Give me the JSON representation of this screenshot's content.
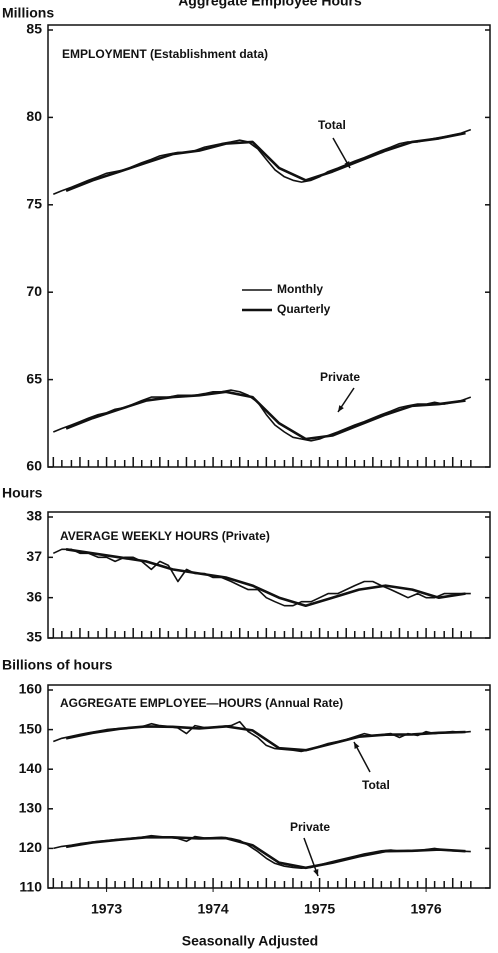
{
  "title": "Aggregate Employee Hours",
  "footer": "Seasonally Adjusted",
  "chart_data": [
    {
      "type": "line",
      "y_label": "Millions",
      "annotations": [
        "EMPLOYMENT (Establishment data)",
        "Total",
        "Private"
      ],
      "xlim": [
        1972.95,
        1977.1
      ],
      "ylim": [
        60,
        85
      ],
      "yticks": [
        60,
        65,
        70,
        75,
        80,
        85
      ],
      "x": [
        1973,
        1973.08,
        1973.17,
        1973.25,
        1973.33,
        1973.42,
        1973.5,
        1973.58,
        1973.67,
        1973.75,
        1973.83,
        1973.92,
        1974,
        1974.08,
        1974.17,
        1974.25,
        1974.33,
        1974.42,
        1974.5,
        1974.58,
        1974.67,
        1974.75,
        1974.83,
        1974.92,
        1975,
        1975.08,
        1975.17,
        1975.25,
        1975.33,
        1975.42,
        1975.5,
        1975.58,
        1975.67,
        1975.75,
        1975.83,
        1975.92,
        1976,
        1976.08,
        1976.17,
        1976.25,
        1976.33,
        1976.42,
        1976.5,
        1976.58,
        1976.67,
        1976.75,
        1976.83,
        1976.92
      ],
      "series": [
        {
          "name": "Monthly",
          "color": "#111111",
          "values": [
            75.6,
            75.8,
            76.0,
            76.2,
            76.4,
            76.6,
            76.8,
            76.9,
            77.0,
            77.2,
            77.4,
            77.6,
            77.8,
            77.9,
            78.0,
            78.0,
            78.1,
            78.3,
            78.4,
            78.5,
            78.6,
            78.7,
            78.6,
            78.2,
            77.6,
            77.0,
            76.6,
            76.4,
            76.3,
            76.4,
            76.6,
            76.9,
            77.1,
            77.3,
            77.5,
            77.7,
            77.9,
            78.1,
            78.3,
            78.5,
            78.6,
            78.6,
            78.7,
            78.8,
            78.9,
            79.0,
            79.1,
            79.3
          ]
        },
        {
          "name": "Quarterly",
          "color": "#111111",
          "x": [
            1973.12,
            1973.37,
            1973.62,
            1973.87,
            1974.12,
            1974.37,
            1974.62,
            1974.87,
            1975.12,
            1975.37,
            1975.62,
            1975.87,
            1976.12,
            1976.37,
            1976.62,
            1976.87
          ],
          "values": [
            75.8,
            76.4,
            76.9,
            77.4,
            77.9,
            78.1,
            78.5,
            78.6,
            77.1,
            76.4,
            76.9,
            77.5,
            78.1,
            78.6,
            78.8,
            79.1
          ]
        },
        {
          "color": "#111111",
          "values": [
            62.0,
            62.2,
            62.4,
            62.6,
            62.8,
            63.0,
            63.1,
            63.3,
            63.4,
            63.6,
            63.8,
            64.0,
            64.0,
            64.0,
            64.1,
            64.1,
            64.1,
            64.2,
            64.3,
            64.3,
            64.4,
            64.3,
            64.1,
            63.7,
            63.0,
            62.4,
            62.0,
            61.7,
            61.6,
            61.5,
            61.6,
            61.8,
            62.0,
            62.2,
            62.4,
            62.6,
            62.8,
            63.0,
            63.2,
            63.4,
            63.5,
            63.6,
            63.6,
            63.7,
            63.6,
            63.7,
            63.8,
            64.0
          ]
        },
        {
          "color": "#111111",
          "x": [
            1973.12,
            1973.37,
            1973.62,
            1973.87,
            1974.12,
            1974.37,
            1974.62,
            1974.87,
            1975.12,
            1975.37,
            1975.62,
            1975.87,
            1976.12,
            1976.37,
            1976.62,
            1976.87
          ],
          "values": [
            62.2,
            62.8,
            63.3,
            63.8,
            64.0,
            64.1,
            64.3,
            64.0,
            62.5,
            61.6,
            61.8,
            62.4,
            63.0,
            63.5,
            63.6,
            63.8
          ]
        }
      ]
    },
    {
      "type": "line",
      "y_label": "Hours",
      "annotations": [
        "AVERAGE WEEKLY HOURS (Private)"
      ],
      "xlim": [
        1972.95,
        1977.1
      ],
      "ylim": [
        35,
        38
      ],
      "yticks": [
        35,
        36,
        37,
        38
      ],
      "x": [
        1973,
        1973.08,
        1973.17,
        1973.25,
        1973.33,
        1973.42,
        1973.5,
        1973.58,
        1973.67,
        1973.75,
        1973.83,
        1973.92,
        1974,
        1974.08,
        1974.17,
        1974.25,
        1974.33,
        1974.42,
        1974.5,
        1974.58,
        1974.67,
        1974.75,
        1974.83,
        1974.92,
        1975,
        1975.08,
        1975.17,
        1975.25,
        1975.33,
        1975.42,
        1975.5,
        1975.58,
        1975.67,
        1975.75,
        1975.83,
        1975.92,
        1976,
        1976.08,
        1976.17,
        1976.25,
        1976.33,
        1976.42,
        1976.5,
        1976.58,
        1976.67,
        1976.75,
        1976.83,
        1976.92
      ],
      "series": [
        {
          "color": "#111111",
          "values": [
            37.1,
            37.2,
            37.2,
            37.1,
            37.1,
            37.0,
            37.0,
            36.9,
            37.0,
            37.0,
            36.9,
            36.7,
            36.9,
            36.8,
            36.4,
            36.7,
            36.6,
            36.6,
            36.5,
            36.5,
            36.4,
            36.3,
            36.2,
            36.2,
            36.0,
            35.9,
            35.8,
            35.8,
            35.9,
            35.9,
            36.0,
            36.1,
            36.1,
            36.2,
            36.3,
            36.4,
            36.4,
            36.3,
            36.2,
            36.1,
            36.0,
            36.1,
            36.0,
            36.0,
            36.1,
            36.1,
            36.1,
            36.1
          ]
        },
        {
          "color": "#111111",
          "x": [
            1973.12,
            1973.37,
            1973.62,
            1973.87,
            1974.12,
            1974.37,
            1974.62,
            1974.87,
            1975.12,
            1975.37,
            1975.62,
            1975.87,
            1976.12,
            1976.37,
            1976.62,
            1976.87
          ],
          "values": [
            37.2,
            37.1,
            37.0,
            36.9,
            36.7,
            36.6,
            36.5,
            36.3,
            36.0,
            35.8,
            36.0,
            36.2,
            36.3,
            36.2,
            36.0,
            36.1
          ]
        }
      ]
    },
    {
      "type": "line",
      "y_label": "Billions of hours",
      "annotations": [
        "AGGREGATE EMPLOYEE—HOURS (Annual Rate)",
        "Total",
        "Private"
      ],
      "xlim": [
        1972.95,
        1977.1
      ],
      "ylim": [
        110,
        160
      ],
      "yticks": [
        110,
        120,
        130,
        140,
        150,
        160
      ],
      "xticks": [
        {
          "value": 1973.5,
          "label": "1973"
        },
        {
          "value": 1974.5,
          "label": "1974"
        },
        {
          "value": 1975.5,
          "label": "1975"
        },
        {
          "value": 1976.5,
          "label": "1976"
        }
      ],
      "x": [
        1973,
        1973.08,
        1973.17,
        1973.25,
        1973.33,
        1973.42,
        1973.5,
        1973.58,
        1973.67,
        1973.75,
        1973.83,
        1973.92,
        1974,
        1974.08,
        1974.17,
        1974.25,
        1974.33,
        1974.42,
        1974.5,
        1974.58,
        1974.67,
        1974.75,
        1974.83,
        1974.92,
        1975,
        1975.08,
        1975.17,
        1975.25,
        1975.33,
        1975.42,
        1975.5,
        1975.58,
        1975.67,
        1975.75,
        1975.83,
        1975.92,
        1976,
        1976.08,
        1976.17,
        1976.25,
        1976.33,
        1976.42,
        1976.5,
        1976.58,
        1976.67,
        1976.75,
        1976.83,
        1976.92
      ],
      "series": [
        {
          "color": "#111111",
          "values": [
            147,
            147.8,
            148.3,
            148.8,
            149.2,
            149.6,
            150.0,
            150.2,
            150.3,
            150.5,
            150.7,
            151.5,
            151.0,
            150.8,
            150.4,
            149.0,
            151.0,
            150.5,
            150.6,
            150.8,
            151.0,
            152.0,
            149.5,
            148.0,
            146.0,
            145.2,
            145.0,
            144.8,
            144.5,
            145.0,
            145.8,
            146.5,
            147.0,
            147.5,
            148.2,
            149.0,
            148.5,
            148.7,
            149.0,
            148.0,
            149.0,
            148.5,
            149.5,
            149.0,
            149.3,
            149.5,
            149.3,
            149.5
          ]
        },
        {
          "color": "#111111",
          "x": [
            1973.12,
            1973.37,
            1973.62,
            1973.87,
            1974.12,
            1974.37,
            1974.62,
            1974.87,
            1975.12,
            1975.37,
            1975.62,
            1975.87,
            1976.12,
            1976.37,
            1976.62,
            1976.87
          ],
          "values": [
            147.8,
            149.2,
            150.2,
            150.8,
            150.7,
            150.3,
            150.8,
            149.8,
            145.3,
            144.8,
            146.5,
            148.2,
            148.7,
            148.8,
            149.2,
            149.4
          ]
        },
        {
          "color": "#111111",
          "values": [
            120.0,
            120.5,
            120.8,
            121.2,
            121.5,
            121.8,
            122.0,
            122.2,
            122.4,
            122.6,
            122.8,
            123.2,
            123.0,
            122.8,
            122.5,
            121.8,
            123.0,
            122.6,
            122.7,
            122.8,
            122.5,
            122.0,
            120.8,
            119.2,
            117.5,
            116.2,
            115.5,
            115.2,
            115.0,
            115.2,
            115.8,
            116.4,
            117.0,
            117.5,
            118.0,
            118.6,
            119.0,
            119.4,
            119.6,
            119.3,
            119.5,
            119.4,
            119.7,
            120.0,
            119.6,
            119.4,
            119.3,
            119.2
          ]
        },
        {
          "color": "#111111",
          "x": [
            1973.12,
            1973.37,
            1973.62,
            1973.87,
            1974.12,
            1974.37,
            1974.62,
            1974.87,
            1975.12,
            1975.37,
            1975.62,
            1975.87,
            1976.12,
            1976.37,
            1976.62,
            1976.87
          ],
          "values": [
            120.4,
            121.5,
            122.2,
            122.8,
            122.8,
            122.5,
            122.6,
            120.8,
            116.4,
            115.1,
            116.4,
            118.0,
            119.3,
            119.4,
            119.7,
            119.3
          ]
        }
      ]
    }
  ]
}
